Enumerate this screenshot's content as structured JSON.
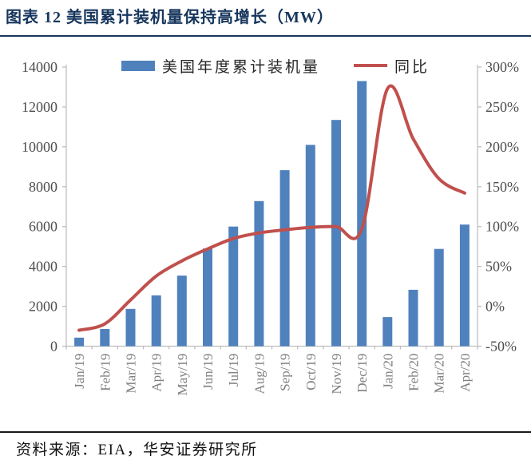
{
  "title": "图表 12 美国累计装机量保持高增长（MW）",
  "source": "资料来源：EIA，华安证券研究所",
  "legend": {
    "bars": "美国年度累计装机量",
    "line": "同比"
  },
  "colors": {
    "bar": "#4F81BD",
    "line": "#C0504D",
    "axis": "#BFBFBF",
    "ytext": "#4D4D4D",
    "xtext": "#7F7F7F",
    "title": "#17365D",
    "rule": "#17365D",
    "footer_rule": "#1A1A1A"
  },
  "chart_data": {
    "type": "bar",
    "subtype": "bar+line combo, dual axis",
    "title": "图表 12 美国累计装机量保持高增长（MW）",
    "categories": [
      "Jan/19",
      "Feb/19",
      "Mar/19",
      "Apr/19",
      "May/19",
      "Jun/19",
      "Jul/19",
      "Aug/19",
      "Sep/19",
      "Oct/19",
      "Nov/19",
      "Dec/19",
      "Jan/20",
      "Feb/20",
      "Mar/20",
      "Apr/20"
    ],
    "series": [
      {
        "name": "美国年度累计装机量",
        "type": "bar",
        "axis": "left",
        "values": [
          430,
          860,
          1870,
          2550,
          3540,
          4900,
          6000,
          7280,
          8830,
          10100,
          11350,
          13300,
          1460,
          2830,
          4880,
          6100
        ]
      },
      {
        "name": "同比",
        "type": "line",
        "axis": "right",
        "values_pct": [
          -30,
          -22,
          8,
          38,
          57,
          72,
          85,
          92,
          96,
          99,
          100,
          97,
          273,
          210,
          160,
          142
        ]
      }
    ],
    "left_axis": {
      "min": 0,
      "max": 14000,
      "tick_step": 2000,
      "tick_labels": [
        "0",
        "2000",
        "4000",
        "6000",
        "8000",
        "10000",
        "12000",
        "14000"
      ]
    },
    "right_axis": {
      "min_pct": -50,
      "max_pct": 300,
      "tick_step_pct": 50,
      "tick_labels": [
        "-50%",
        "0%",
        "50%",
        "100%",
        "150%",
        "200%",
        "250%",
        "300%"
      ]
    },
    "grid": false,
    "legend_position": "top-center",
    "x_tick_label_rotation_deg": 90
  }
}
